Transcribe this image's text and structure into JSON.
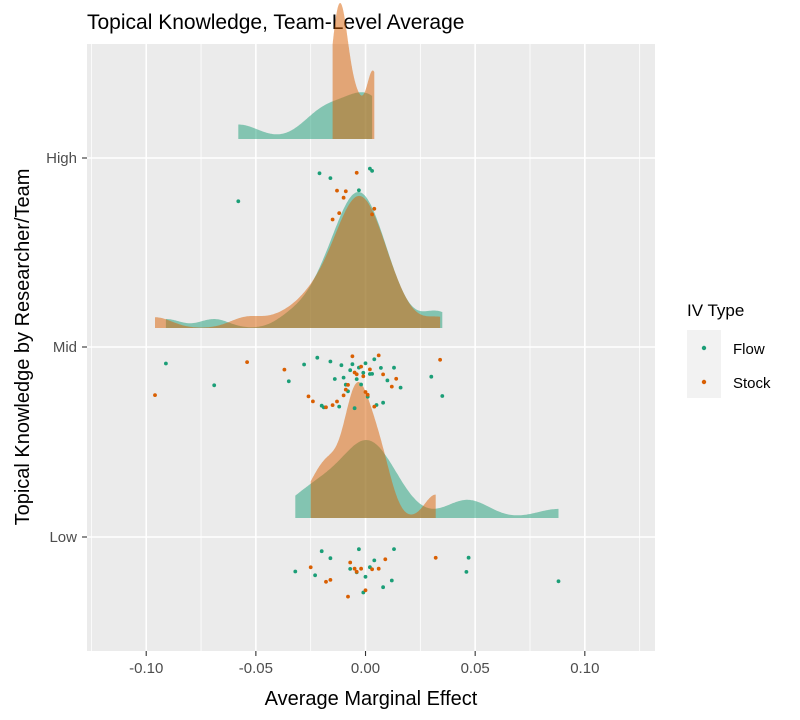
{
  "chart_data": {
    "type": "ridgeline",
    "title": "Topical Knowledge, Team-Level Average",
    "xlabel": "Average Marginal Effect",
    "ylabel": "Topical Knowledge by Researcher/Team",
    "xlim": [
      -0.127,
      0.132
    ],
    "x_ticks": [
      "-0.10",
      "-0.05",
      "0.00",
      "0.05",
      "0.10"
    ],
    "x_tick_values": [
      -0.1,
      -0.05,
      0.0,
      0.05,
      0.1
    ],
    "categories": [
      "Low",
      "Mid",
      "High"
    ],
    "legend": {
      "title": "IV Type",
      "placement": "right"
    },
    "colors": {
      "Flow": "#1b9e77",
      "Stock": "#d95f02",
      "panel": "#ebebeb",
      "grid": "#ffffff"
    },
    "series": [
      {
        "name": "Flow",
        "points": {
          "High": [
            -0.058,
            -0.021,
            -0.016,
            -0.003,
            0.003,
            0.002
          ],
          "Mid": [
            -0.091,
            -0.069,
            -0.035,
            -0.028,
            -0.022,
            -0.02,
            -0.019,
            -0.016,
            -0.014,
            -0.012,
            -0.011,
            -0.01,
            -0.009,
            -0.008,
            -0.007,
            -0.006,
            -0.005,
            -0.004,
            -0.003,
            -0.002,
            -0.001,
            0.0,
            0.001,
            0.002,
            0.003,
            0.004,
            0.005,
            0.007,
            0.008,
            0.01,
            0.013,
            0.016,
            0.03,
            0.035
          ],
          "Low": [
            -0.032,
            -0.023,
            -0.02,
            -0.016,
            -0.007,
            -0.004,
            -0.003,
            -0.001,
            0.0,
            0.002,
            0.004,
            0.008,
            0.012,
            0.013,
            0.046,
            0.047,
            0.088
          ]
        }
      },
      {
        "name": "Stock",
        "points": {
          "High": [
            -0.015,
            -0.013,
            -0.012,
            -0.01,
            -0.009,
            -0.004,
            0.004,
            0.003
          ],
          "Mid": [
            -0.096,
            -0.054,
            -0.037,
            -0.026,
            -0.024,
            -0.018,
            -0.015,
            -0.013,
            -0.01,
            -0.009,
            -0.008,
            -0.006,
            -0.005,
            -0.004,
            -0.002,
            -0.001,
            0.0,
            0.001,
            0.002,
            0.004,
            0.006,
            0.008,
            0.012,
            0.014,
            0.034
          ],
          "Low": [
            -0.025,
            -0.018,
            -0.016,
            -0.008,
            -0.007,
            -0.005,
            -0.004,
            -0.002,
            0.0,
            0.003,
            0.006,
            0.009,
            0.032
          ]
        }
      }
    ]
  }
}
